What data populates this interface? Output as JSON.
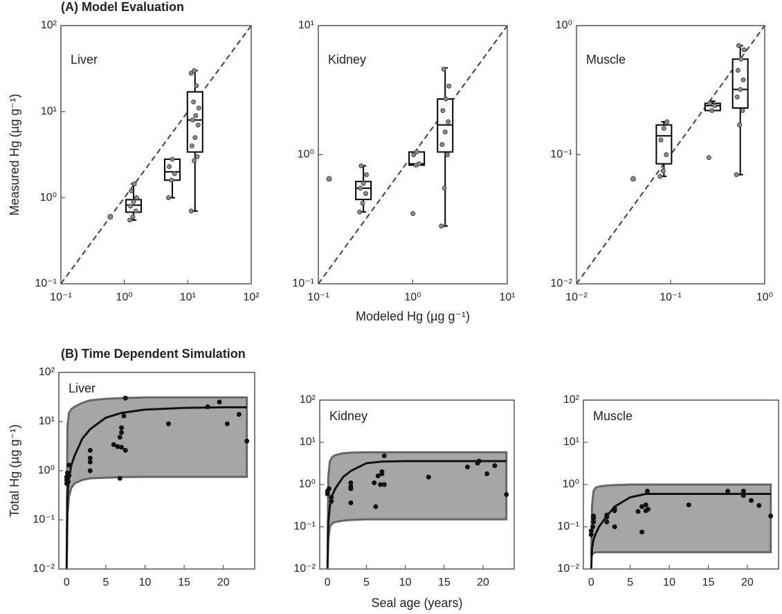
{
  "chart_data": [
    {
      "type": "box",
      "section_title": "(A) Model Evaluation",
      "ylabel": "Measured Hg (µg g⁻¹)",
      "title": "Liver",
      "xscale": "log",
      "yscale": "log",
      "xlim": [
        0.1,
        100
      ],
      "ylim": [
        0.1,
        100
      ],
      "xticks": [
        {
          "value": 0.1,
          "label": "10⁻¹"
        },
        {
          "value": 1,
          "label": "10⁰"
        },
        {
          "value": 10,
          "label": "10¹"
        },
        {
          "value": 100,
          "label": "10²"
        }
      ],
      "yticks": [
        {
          "value": 0.1,
          "label": "10⁻¹"
        },
        {
          "value": 1,
          "label": "10⁰"
        },
        {
          "value": 10,
          "label": "10¹"
        },
        {
          "value": 100,
          "label": "10²"
        }
      ],
      "diagonal": true,
      "diagonal_color": "#1f3f99",
      "box_color": "#000000",
      "point_color": "#8c8c8c",
      "points": {
        "x": [
          0.6
        ],
        "y": [
          0.6
        ]
      },
      "groups": [
        {
          "x": 1.4,
          "whisker_low": 0.55,
          "q1": 0.68,
          "median": 0.82,
          "q3": 0.95,
          "whisker_high": 1.45,
          "points": [
            0.55,
            0.6,
            0.7,
            0.8,
            0.9,
            1.0,
            1.2,
            1.45
          ]
        },
        {
          "x": 5.7,
          "whisker_low": 1.0,
          "q1": 1.6,
          "median": 2.0,
          "q3": 2.8,
          "whisker_high": 2.8,
          "points": [
            1.0,
            1.6,
            1.9,
            2.3,
            2.8
          ]
        },
        {
          "x": 13,
          "whisker_low": 0.7,
          "q1": 3.4,
          "median": 8,
          "q3": 17,
          "whisker_high": 30,
          "points": [
            0.7,
            2.7,
            3.0,
            4,
            5,
            7,
            8,
            9,
            11,
            13,
            20,
            28,
            30
          ]
        }
      ]
    },
    {
      "type": "box",
      "xlabel": "Modeled Hg (µg g⁻¹)",
      "title": "Kidney",
      "xscale": "log",
      "yscale": "log",
      "xlim": [
        0.1,
        10
      ],
      "ylim": [
        0.1,
        10
      ],
      "xticks": [
        {
          "value": 0.1,
          "label": "10⁻¹"
        },
        {
          "value": 1,
          "label": "10⁰"
        },
        {
          "value": 10,
          "label": "10¹"
        }
      ],
      "yticks": [
        {
          "value": 0.1,
          "label": "10⁻¹"
        },
        {
          "value": 1,
          "label": "10⁰"
        },
        {
          "value": 10,
          "label": "10¹"
        }
      ],
      "diagonal": true,
      "diagonal_color": "#1f3f99",
      "box_color": "#000000",
      "point_color": "#8c8c8c",
      "points": {
        "x": [
          0.13
        ],
        "y": [
          0.65
        ]
      },
      "groups": [
        {
          "x": 0.3,
          "whisker_low": 0.36,
          "q1": 0.45,
          "median": 0.55,
          "q3": 0.62,
          "whisker_high": 0.82,
          "points": [
            0.36,
            0.42,
            0.5,
            0.55,
            0.6,
            0.7,
            0.82
          ]
        },
        {
          "x": 1.1,
          "whisker_low": 0.83,
          "q1": 0.83,
          "median": 0.85,
          "q3": 1.05,
          "whisker_high": 1.05,
          "points": [
            0.35,
            0.83,
            0.85,
            1.0,
            1.05
          ]
        },
        {
          "x": 2.2,
          "whisker_low": 0.28,
          "q1": 1.05,
          "median": 1.7,
          "q3": 2.7,
          "whisker_high": 4.7,
          "points": [
            0.28,
            0.55,
            1.0,
            1.2,
            1.5,
            1.8,
            2.2,
            2.7,
            3.4,
            4.6
          ]
        }
      ]
    },
    {
      "type": "box",
      "title": "Muscle",
      "xscale": "log",
      "yscale": "log",
      "xlim": [
        0.01,
        1
      ],
      "ylim": [
        0.01,
        1
      ],
      "xticks": [
        {
          "value": 0.01,
          "label": "10⁻²"
        },
        {
          "value": 0.1,
          "label": "10⁻¹"
        },
        {
          "value": 1,
          "label": "10⁰"
        }
      ],
      "yticks": [
        {
          "value": 0.01,
          "label": "10⁻²"
        },
        {
          "value": 0.1,
          "label": "10⁻¹"
        },
        {
          "value": 1,
          "label": "10⁰"
        }
      ],
      "diagonal": true,
      "diagonal_color": "#1f3f99",
      "box_color": "#000000",
      "point_color": "#8c8c8c",
      "points": {
        "x": [
          0.04
        ],
        "y": [
          0.065
        ]
      },
      "groups": [
        {
          "x": 0.085,
          "whisker_low": 0.068,
          "q1": 0.085,
          "median": 0.14,
          "q3": 0.17,
          "whisker_high": 0.18,
          "points": [
            0.068,
            0.075,
            0.1,
            0.13,
            0.16,
            0.18
          ]
        },
        {
          "x": 0.28,
          "whisker_low": 0.22,
          "q1": 0.22,
          "median": 0.24,
          "q3": 0.25,
          "whisker_high": 0.26,
          "points": [
            0.095,
            0.22,
            0.24,
            0.25
          ]
        },
        {
          "x": 0.55,
          "whisker_low": 0.07,
          "q1": 0.23,
          "median": 0.32,
          "q3": 0.55,
          "whisker_high": 0.7,
          "points": [
            0.07,
            0.17,
            0.22,
            0.28,
            0.32,
            0.38,
            0.45,
            0.55,
            0.65,
            0.7
          ]
        }
      ]
    },
    {
      "type": "line",
      "section_title": "(B) Time Dependent Simulation",
      "ylabel": "Total Hg (µg g⁻¹)",
      "title": "Liver",
      "yscale": "log",
      "xlim": [
        -1,
        24
      ],
      "ylim": [
        0.01,
        100
      ],
      "xticks": [
        0,
        5,
        10,
        15,
        20
      ],
      "yticks": [
        {
          "value": 0.01,
          "label": "10⁻²"
        },
        {
          "value": 0.1,
          "label": "10⁻¹"
        },
        {
          "value": 1,
          "label": "10⁰"
        },
        {
          "value": 10,
          "label": "10¹"
        },
        {
          "value": 100,
          "label": "10²"
        }
      ],
      "x": [
        0,
        0.1,
        0.3,
        0.6,
        1,
        2,
        3,
        5,
        7,
        10,
        15,
        20,
        23
      ],
      "model": {
        "color": "#111111",
        "values": [
          0.01,
          0.3,
          0.7,
          1.3,
          2,
          4.5,
          7,
          12,
          15,
          17.5,
          19,
          19.5,
          19.5
        ]
      },
      "band": {
        "color": "#a6a6a6",
        "edge_color": "#666666",
        "upper": [
          0.01,
          8,
          15,
          18,
          20,
          24,
          27,
          29,
          30,
          31,
          31,
          31,
          31
        ],
        "lower": [
          0.01,
          0.12,
          0.3,
          0.45,
          0.55,
          0.65,
          0.7,
          0.72,
          0.74,
          0.75,
          0.75,
          0.75,
          0.75
        ]
      },
      "observations": {
        "color": "#111111",
        "x": [
          0,
          0,
          0,
          0.1,
          0.2,
          0.3,
          0.3,
          3,
          3,
          3,
          3,
          6,
          6.5,
          7,
          7.5,
          6.8,
          6.8,
          7,
          7,
          7.3,
          7.5,
          13,
          18,
          19.5,
          20.5,
          22,
          23
        ],
        "y": [
          0.55,
          0.65,
          0.75,
          0.9,
          0.6,
          1.3,
          0.8,
          1.0,
          1.5,
          1.8,
          2.6,
          3.4,
          3.1,
          3.0,
          2.6,
          0.7,
          4.8,
          6,
          7.5,
          13,
          30,
          9,
          20,
          25,
          9,
          14,
          4
        ]
      }
    },
    {
      "type": "line",
      "xlabel": "Seal age (years)",
      "title": "Kidney",
      "yscale": "log",
      "xlim": [
        -1,
        24
      ],
      "ylim": [
        0.01,
        100
      ],
      "xticks": [
        0,
        5,
        10,
        15,
        20
      ],
      "yticks": [
        {
          "value": 0.01,
          "label": "10⁻²"
        },
        {
          "value": 0.1,
          "label": "10⁻¹"
        },
        {
          "value": 1,
          "label": "10⁰"
        },
        {
          "value": 10,
          "label": "10¹"
        },
        {
          "value": 100,
          "label": "10²"
        }
      ],
      "x": [
        0,
        0.1,
        0.3,
        0.6,
        1,
        2,
        3,
        5,
        7,
        10,
        15,
        20,
        23
      ],
      "model": {
        "color": "#111111",
        "values": [
          0.01,
          0.12,
          0.3,
          0.55,
          0.8,
          1.5,
          2.1,
          3.2,
          3.5,
          3.6,
          3.6,
          3.6,
          3.6
        ]
      },
      "band": {
        "color": "#a6a6a6",
        "edge_color": "#666666",
        "upper": [
          0.01,
          1.5,
          3.5,
          4.5,
          5,
          5.5,
          5.7,
          5.8,
          5.8,
          5.8,
          5.8,
          5.8,
          5.8
        ],
        "lower": [
          0.01,
          0.05,
          0.1,
          0.12,
          0.13,
          0.14,
          0.145,
          0.15,
          0.15,
          0.15,
          0.15,
          0.15,
          0.15
        ]
      },
      "observations": {
        "color": "#111111",
        "x": [
          0,
          0,
          0.2,
          0.5,
          0.5,
          3,
          3,
          3,
          3,
          6,
          6.2,
          6.5,
          6.8,
          7,
          7,
          7.3,
          7.3,
          13,
          18,
          19.3,
          19.5,
          20.5,
          21.5,
          23
        ],
        "y": [
          0.6,
          0.7,
          0.8,
          0.5,
          0.4,
          1.1,
          0.9,
          0.8,
          0.37,
          1.1,
          0.3,
          1.6,
          1.0,
          1.8,
          2.0,
          1.0,
          4.8,
          1.5,
          2.6,
          3.2,
          3.6,
          1.8,
          2.8,
          0.58
        ]
      }
    },
    {
      "type": "line",
      "title": "Muscle",
      "yscale": "log",
      "xlim": [
        -1,
        24
      ],
      "ylim": [
        0.01,
        100
      ],
      "xticks": [
        0,
        5,
        10,
        15,
        20
      ],
      "yticks": [
        {
          "value": 0.01,
          "label": "10⁻²"
        },
        {
          "value": 0.1,
          "label": "10⁻¹"
        },
        {
          "value": 1,
          "label": "10⁰"
        },
        {
          "value": 10,
          "label": "10¹"
        },
        {
          "value": 100,
          "label": "10²"
        }
      ],
      "x": [
        0,
        0.1,
        0.3,
        0.6,
        1,
        2,
        3,
        5,
        7,
        10,
        15,
        20,
        23
      ],
      "model": {
        "color": "#111111",
        "values": [
          0.01,
          0.03,
          0.05,
          0.07,
          0.1,
          0.18,
          0.3,
          0.5,
          0.6,
          0.6,
          0.6,
          0.6,
          0.6
        ]
      },
      "band": {
        "color": "#a6a6a6",
        "edge_color": "#666666",
        "upper": [
          0.02,
          0.3,
          0.7,
          0.85,
          0.9,
          0.95,
          0.97,
          1,
          1,
          1,
          1,
          1,
          1
        ],
        "lower": [
          0.02,
          0.022,
          0.024,
          0.025,
          0.025,
          0.025,
          0.025,
          0.025,
          0.025,
          0.025,
          0.025,
          0.025,
          0.025
        ]
      },
      "observations": {
        "color": "#111111",
        "x": [
          0,
          0,
          0.2,
          0.3,
          0.3,
          0.3,
          2,
          2,
          2,
          3,
          3,
          3,
          6,
          6.5,
          6.5,
          7,
          7,
          7.2,
          7.3,
          12.5,
          17.5,
          19.5,
          19.5,
          20.5,
          21.5,
          23
        ],
        "y": [
          0.065,
          0.08,
          0.1,
          0.13,
          0.16,
          0.18,
          0.13,
          0.17,
          0.19,
          0.1,
          0.24,
          0.27,
          0.23,
          0.075,
          0.3,
          0.24,
          0.33,
          0.7,
          0.26,
          0.33,
          0.7,
          0.55,
          0.7,
          0.42,
          0.32,
          0.18
        ]
      }
    }
  ]
}
